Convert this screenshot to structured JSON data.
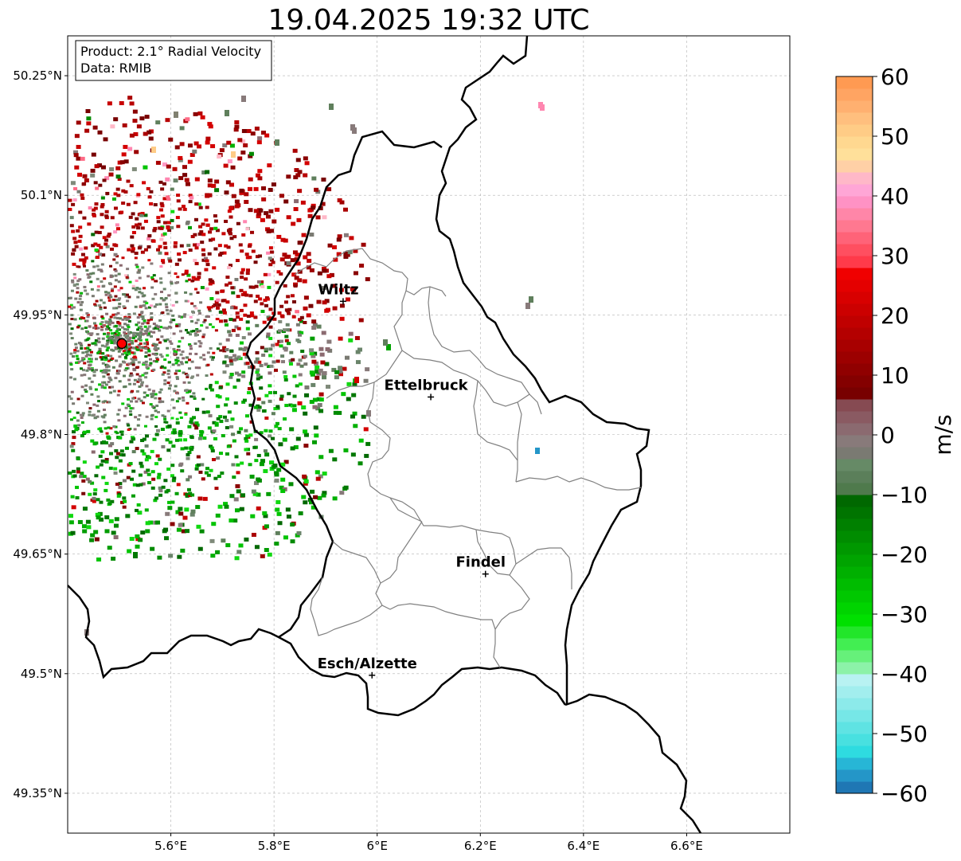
{
  "title": "19.04.2025 19:32 UTC",
  "info_box": {
    "product": "Product: 2.1° Radial Velocity",
    "data": "Data: RMIB"
  },
  "map": {
    "lon_range": [
      5.4,
      6.8
    ],
    "lat_range": [
      49.3,
      50.3
    ],
    "x_ticks": [
      {
        "value": 5.6,
        "label": "5.6°E"
      },
      {
        "value": 5.8,
        "label": "5.8°E"
      },
      {
        "value": 6.0,
        "label": "6°E"
      },
      {
        "value": 6.2,
        "label": "6.2°E"
      },
      {
        "value": 6.4,
        "label": "6.4°E"
      },
      {
        "value": 6.6,
        "label": "6.6°E"
      }
    ],
    "y_ticks": [
      {
        "value": 50.25,
        "label": "50.25°N"
      },
      {
        "value": 50.1,
        "label": "50.1°N"
      },
      {
        "value": 49.95,
        "label": "49.95°N"
      },
      {
        "value": 49.8,
        "label": "49.8°N"
      },
      {
        "value": 49.65,
        "label": "49.65°N"
      },
      {
        "value": 49.5,
        "label": "49.5°N"
      },
      {
        "value": 49.35,
        "label": "49.35°N"
      }
    ],
    "radar_site": {
      "lon": 5.505,
      "lat": 49.914
    },
    "cities": [
      {
        "name": "Wiltz",
        "lon": 5.934,
        "lat": 49.967
      },
      {
        "name": "Ettelbruck",
        "lon": 6.104,
        "lat": 49.847
      },
      {
        "name": "Findel",
        "lon": 6.21,
        "lat": 49.625
      },
      {
        "name": "Esch/Alzette",
        "lon": 5.99,
        "lat": 49.498
      }
    ],
    "grid": true
  },
  "colorbar": {
    "unit": "m/s",
    "range": [
      -60,
      60
    ],
    "ticks": [
      {
        "value": 60,
        "label": "60"
      },
      {
        "value": 50,
        "label": "50"
      },
      {
        "value": 40,
        "label": "40"
      },
      {
        "value": 30,
        "label": "30"
      },
      {
        "value": 20,
        "label": "20"
      },
      {
        "value": 10,
        "label": "10"
      },
      {
        "value": 0,
        "label": "0"
      },
      {
        "value": -10,
        "label": "−10"
      },
      {
        "value": -20,
        "label": "−20"
      },
      {
        "value": -30,
        "label": "−30"
      },
      {
        "value": -40,
        "label": "−40"
      },
      {
        "value": -50,
        "label": "−50"
      },
      {
        "value": -60,
        "label": "−60"
      }
    ],
    "colors": [
      "#1f77b4",
      "#2496c8",
      "#27b6d6",
      "#2edbe0",
      "#48e0e0",
      "#5fe3e3",
      "#76e7e7",
      "#8ceaea",
      "#a2eeee",
      "#b8f2f2",
      "#8cf2a8",
      "#66f07a",
      "#42ee52",
      "#22e62a",
      "#00e000",
      "#00d400",
      "#00c800",
      "#00bc00",
      "#00b000",
      "#00a400",
      "#009800",
      "#008c00",
      "#008000",
      "#007400",
      "#006800",
      "#4f7a4c",
      "#5b7f5a",
      "#668a66",
      "#7a7a72",
      "#887a7a",
      "#8b6a70",
      "#8a5a62",
      "#864a52",
      "#780000",
      "#840000",
      "#900000",
      "#9c0000",
      "#a80000",
      "#b40000",
      "#c00000",
      "#cc0000",
      "#d80000",
      "#e40000",
      "#f00000",
      "#ff3a4a",
      "#ff4f60",
      "#ff6378",
      "#ff7890",
      "#ff86a8",
      "#ff92c4",
      "#ffa6d6",
      "#ffb8c8",
      "#ffd0a6",
      "#ffe09a",
      "#ffd890",
      "#ffcc86",
      "#ffbf7e",
      "#ffb070",
      "#ffa462",
      "#ff9a52"
    ]
  }
}
